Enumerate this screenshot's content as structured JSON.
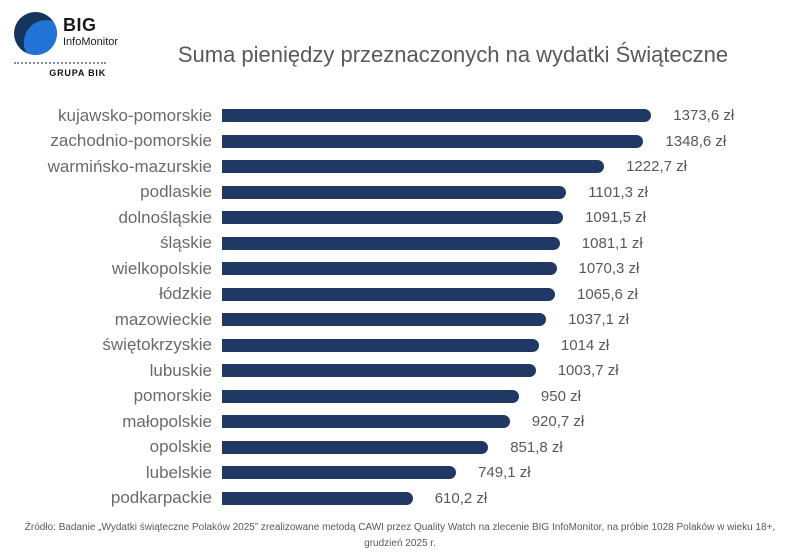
{
  "logo": {
    "brand": "BIG",
    "subbrand": "InfoMonitor",
    "group": "GRUPA BIK"
  },
  "header": {
    "title": "Suma pieniędzy przeznaczonych na wydatki Świąteczne"
  },
  "chart_data": {
    "type": "bar",
    "orientation": "horizontal",
    "title": "Suma pieniędzy przeznaczonych na wydatki Świąteczne",
    "categories": [
      "kujawsko-pomorskie",
      "zachodnio-pomorskie",
      "warmińsko-mazurskie",
      "podlaskie",
      "dolnośląskie",
      "śląskie",
      "wielkopolskie",
      "łódzkie",
      "mazowieckie",
      "świętokrzyskie",
      "lubuskie",
      "pomorskie",
      "małopolskie",
      "opolskie",
      "lubelskie",
      "podkarpackie"
    ],
    "values": [
      1373.6,
      1348.6,
      1222.7,
      1101.3,
      1091.5,
      1081.1,
      1070.3,
      1065.6,
      1037.1,
      1014,
      1003.7,
      950,
      920.7,
      851.8,
      749.1,
      610.2
    ],
    "value_labels": [
      "1373,6 zł",
      "1348,6 zł",
      "1222,7 zł",
      "1101,3 zł",
      "1091,5 zł",
      "1081,1 zł",
      "1070,3 zł",
      "1065,6 zł",
      "1037,1 zł",
      "1014 zł",
      "1003,7 zł",
      "950 zł",
      "920,7 zł",
      "851,8 zł",
      "749,1 zł",
      "610,2 zł"
    ],
    "unit": "zł",
    "xlim": [
      0,
      1400
    ],
    "grid": false,
    "legend": false,
    "bar_color": "#1f3864"
  },
  "footer": {
    "source": "Źródło: Badanie „Wydatki świąteczne Polaków 2025” zrealizowane metodą CAWI przez Quality Watch na zlecenie BIG InfoMonitor, na próbie 1028 Polaków w wieku 18+, grudzień 2025 r."
  },
  "colors": {
    "bar": "#1f3864",
    "title_text": "#595959",
    "category_label": "#6a6a6a",
    "value_label": "#595959",
    "logo_dark_blue": "#16355c",
    "logo_bright_blue": "#2273d6"
  }
}
